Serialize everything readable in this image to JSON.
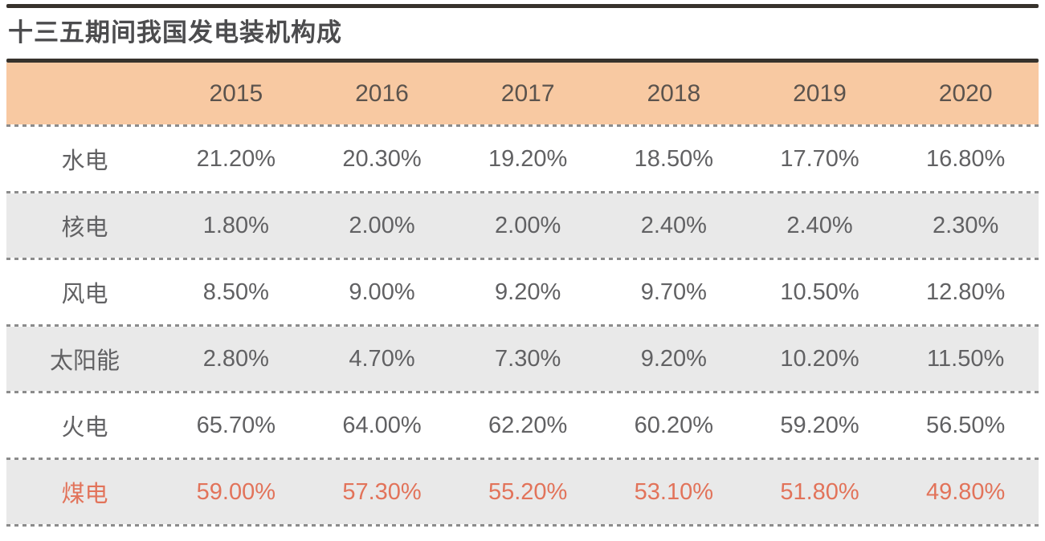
{
  "title": "十三五期间我国发电装机构成",
  "colors": {
    "header_bg": "#f8c9a2",
    "alt_row_bg": "#e9e9e9",
    "text": "#616163",
    "highlight_text": "#e2735a",
    "rule": "#37322c",
    "divider_dots": "#8c8c8c"
  },
  "table": {
    "header": [
      "2015",
      "2016",
      "2017",
      "2018",
      "2019",
      "2020"
    ],
    "rows": [
      {
        "label": "水电",
        "highlight": false,
        "values": [
          "21.20%",
          "20.30%",
          "19.20%",
          "18.50%",
          "17.70%",
          "16.80%"
        ]
      },
      {
        "label": "核电",
        "highlight": false,
        "values": [
          "1.80%",
          "2.00%",
          "2.00%",
          "2.40%",
          "2.40%",
          "2.30%"
        ]
      },
      {
        "label": "风电",
        "highlight": false,
        "values": [
          "8.50%",
          "9.00%",
          "9.20%",
          "9.70%",
          "10.50%",
          "12.80%"
        ]
      },
      {
        "label": "太阳能",
        "highlight": false,
        "values": [
          "2.80%",
          "4.70%",
          "7.30%",
          "9.20%",
          "10.20%",
          "11.50%"
        ]
      },
      {
        "label": "火电",
        "highlight": false,
        "values": [
          "65.70%",
          "64.00%",
          "62.20%",
          "60.20%",
          "59.20%",
          "56.50%"
        ]
      },
      {
        "label": "煤电",
        "highlight": true,
        "values": [
          "59.00%",
          "57.30%",
          "55.20%",
          "53.10%",
          "51.80%",
          "49.80%"
        ]
      }
    ]
  },
  "chart_data": {
    "type": "table",
    "title": "十三五期间我国发电装机构成",
    "categories": [
      "2015",
      "2016",
      "2017",
      "2018",
      "2019",
      "2020"
    ],
    "unit": "%",
    "series": [
      {
        "name": "水电",
        "values": [
          21.2,
          20.3,
          19.2,
          18.5,
          17.7,
          16.8
        ]
      },
      {
        "name": "核电",
        "values": [
          1.8,
          2.0,
          2.0,
          2.4,
          2.4,
          2.3
        ]
      },
      {
        "name": "风电",
        "values": [
          8.5,
          9.0,
          9.2,
          9.7,
          10.5,
          12.8
        ]
      },
      {
        "name": "太阳能",
        "values": [
          2.8,
          4.7,
          7.3,
          9.2,
          10.2,
          11.5
        ]
      },
      {
        "name": "火电",
        "values": [
          65.7,
          64.0,
          62.2,
          60.2,
          59.2,
          56.5
        ]
      },
      {
        "name": "煤电",
        "values": [
          59.0,
          57.3,
          55.2,
          53.1,
          51.8,
          49.8
        ]
      }
    ],
    "layout": {
      "highlighted_series": "煤电",
      "alternating_row_shading": true,
      "header_fill": "#f8c9a2"
    }
  }
}
